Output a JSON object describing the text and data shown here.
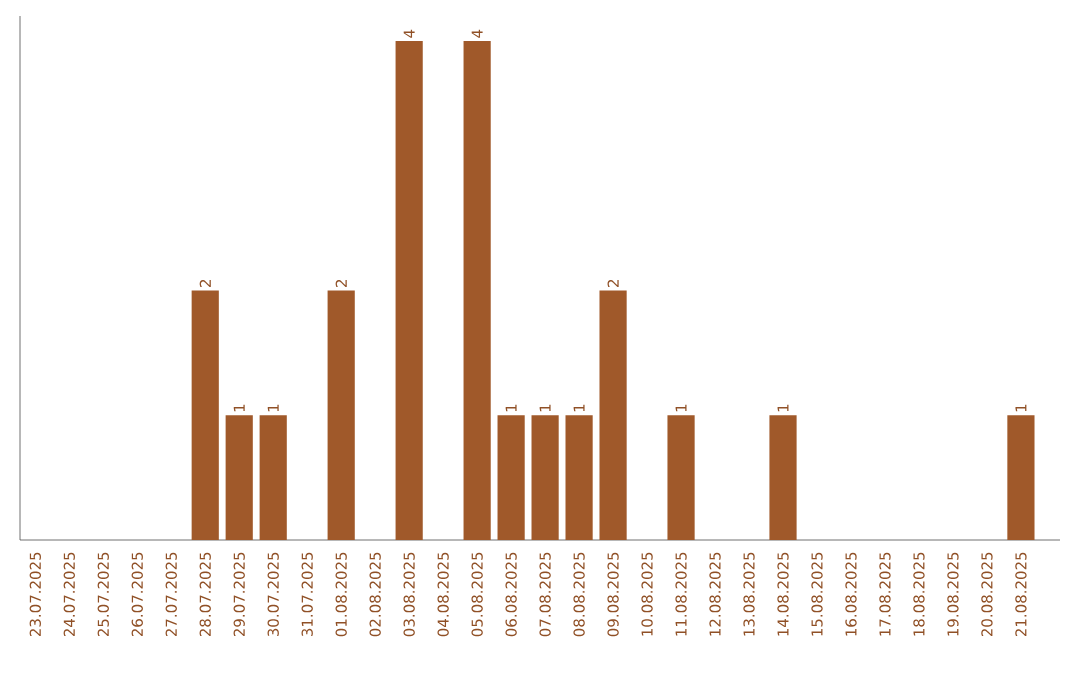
{
  "chart_data": {
    "type": "bar",
    "categories": [
      "23.07.2025",
      "24.07.2025",
      "25.07.2025",
      "26.07.2025",
      "27.07.2025",
      "28.07.2025",
      "29.07.2025",
      "30.07.2025",
      "31.07.2025",
      "01.08.2025",
      "02.08.2025",
      "03.08.2025",
      "04.08.2025",
      "05.08.2025",
      "06.08.2025",
      "07.08.2025",
      "08.08.2025",
      "09.08.2025",
      "10.08.2025",
      "11.08.2025",
      "12.08.2025",
      "13.08.2025",
      "14.08.2025",
      "15.08.2025",
      "16.08.2025",
      "17.08.2025",
      "18.08.2025",
      "19.08.2025",
      "20.08.2025",
      "21.08.2025"
    ],
    "values": [
      0,
      0,
      0,
      0,
      0,
      2,
      1,
      1,
      0,
      2,
      0,
      4,
      0,
      4,
      1,
      1,
      1,
      2,
      0,
      1,
      0,
      0,
      1,
      0,
      0,
      0,
      0,
      0,
      0,
      1
    ],
    "value_labels": [
      null,
      null,
      null,
      null,
      null,
      "2",
      "1",
      "1",
      null,
      "2",
      null,
      "4",
      null,
      "4",
      "1",
      "1",
      "1",
      "2",
      null,
      "1",
      null,
      null,
      "1",
      null,
      null,
      null,
      null,
      null,
      null,
      "1"
    ],
    "color": "#a0592a",
    "ylim": [
      0,
      4.2
    ],
    "tick_labels": "x"
  }
}
